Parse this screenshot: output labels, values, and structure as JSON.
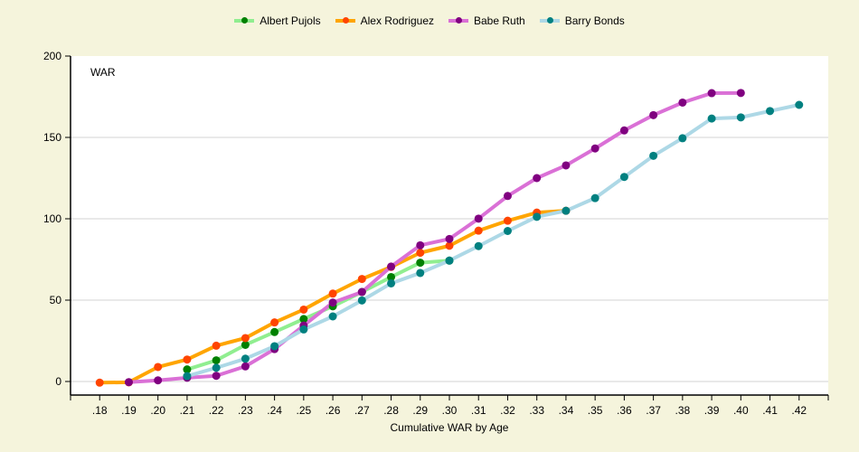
{
  "chart_data": {
    "type": "line",
    "title": "",
    "plot_label": "WAR",
    "xlabel": "Cumulative WAR by Age",
    "ylabel": "WAR",
    "ylim": [
      0,
      200
    ],
    "yticks": [
      0,
      50,
      100,
      150,
      200
    ],
    "grid": true,
    "legend_position": "top",
    "categories": [
      ".18",
      ".19",
      ".20",
      ".21",
      ".22",
      ".23",
      ".24",
      ".25",
      ".26",
      ".27",
      ".28",
      ".29",
      ".30",
      ".31",
      ".32",
      ".33",
      ".34",
      ".35",
      ".36",
      ".37",
      ".38",
      ".39",
      ".40",
      ".41",
      ".42"
    ],
    "series": [
      {
        "name": "Albert Pujols",
        "line_color": "#90ee90",
        "marker_color": "#008000",
        "values": [
          null,
          null,
          null,
          7.4,
          13,
          22.5,
          30.4,
          38.4,
          46.2,
          55,
          64.2,
          73,
          74.3,
          null,
          null,
          null,
          null,
          null,
          null,
          null,
          null,
          null,
          null,
          null,
          null
        ]
      },
      {
        "name": "Alex Rodriguez",
        "line_color": "#ffa500",
        "marker_color": "#ff4500",
        "values": [
          -0.7,
          -0.5,
          8.9,
          13.5,
          22,
          26.7,
          36.3,
          44.2,
          54,
          63,
          70.4,
          79.1,
          83.4,
          92.7,
          98.8,
          103.8,
          104.9,
          null,
          null,
          null,
          null,
          null,
          null,
          null,
          null
        ]
      },
      {
        "name": "Babe Ruth",
        "line_color": "#da70d6",
        "marker_color": "#800080",
        "values": [
          null,
          -0.4,
          0.7,
          2.3,
          3.5,
          9.3,
          19.9,
          34.4,
          48.5,
          55,
          70.6,
          83.7,
          87.6,
          100.1,
          114,
          125,
          132.8,
          143.2,
          154.3,
          163.7,
          171.4,
          177.2,
          177.3,
          null,
          null
        ]
      },
      {
        "name": "Barry Bonds",
        "line_color": "#add8e6",
        "marker_color": "#008080",
        "values": [
          null,
          null,
          null,
          3.3,
          8.4,
          14,
          21.7,
          32,
          40,
          49.8,
          60.3,
          66.7,
          74.3,
          83.2,
          92.5,
          101.2,
          104.9,
          112.7,
          125.7,
          138.7,
          149.5,
          161.6,
          162.3,
          166.2,
          170
        ]
      }
    ]
  },
  "legend": {
    "items": [
      {
        "label": "Albert Pujols"
      },
      {
        "label": "Alex Rodriguez"
      },
      {
        "label": "Babe Ruth"
      },
      {
        "label": "Barry Bonds"
      }
    ]
  },
  "colors": {
    "background": "#f5f4dc",
    "plot_background": "#ffffff",
    "gridline": "#d3d3d3",
    "axis": "#000000"
  }
}
